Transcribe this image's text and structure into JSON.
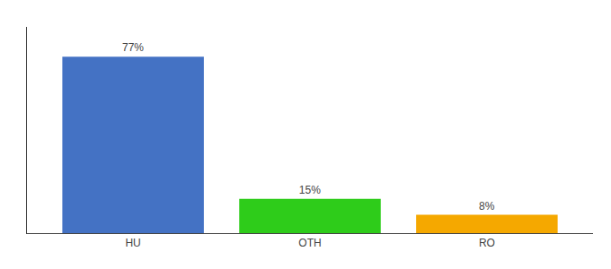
{
  "chart_data": {
    "type": "bar",
    "categories": [
      "HU",
      "OTH",
      "RO"
    ],
    "values": [
      77,
      15,
      8
    ],
    "value_labels": [
      "77%",
      "15%",
      "8%"
    ],
    "data_labels": true,
    "colors": [
      "#4472c4",
      "#2ecc1a",
      "#f5a800"
    ],
    "ylim": [
      0,
      90
    ],
    "grid": false,
    "tick_labels": "x"
  }
}
